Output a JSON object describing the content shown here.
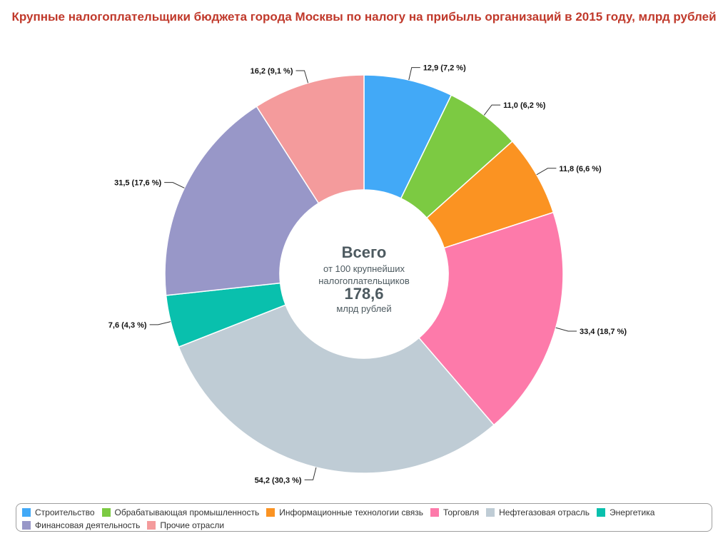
{
  "title": "Крупные налогоплательщики бюджета города Москвы по налогу на прибыль организаций в 2015 году, млрд рублей",
  "center": {
    "heading": "Всего",
    "line1": "от 100 крупнейших",
    "line2": "налогоплательщиков",
    "total": "178,6",
    "unit": "млрд рублей"
  },
  "chart_data": {
    "type": "pie",
    "donut": true,
    "total": 178.6,
    "slices": [
      {
        "label": "Строительство",
        "value": 12.9,
        "percent": 7.2,
        "data_label": "12,9 (7,2 %)",
        "color": "#42a9f7"
      },
      {
        "label": "Обрабатывающая промышленность",
        "value": 11.0,
        "percent": 6.2,
        "data_label": "11,0 (6,2 %)",
        "color": "#7cca42"
      },
      {
        "label": "Информационные технологии связь",
        "value": 11.8,
        "percent": 6.6,
        "data_label": "11,8 (6,6 %)",
        "color": "#fb9322"
      },
      {
        "label": "Торговля",
        "value": 33.4,
        "percent": 18.7,
        "data_label": "33,4 (18,7 %)",
        "color": "#fd7aaa"
      },
      {
        "label": "Нефтегазовая отрасль",
        "value": 54.2,
        "percent": 30.3,
        "data_label": "54,2 (30,3 %)",
        "color": "#bfccd5"
      },
      {
        "label": "Энергетика",
        "value": 7.6,
        "percent": 4.3,
        "data_label": "7,6 (4,3 %)",
        "color": "#09c0ad"
      },
      {
        "label": "Финансовая деятельность",
        "value": 31.5,
        "percent": 17.6,
        "data_label": "31,5 (17,6 %)",
        "color": "#9897c8"
      },
      {
        "label": "Прочие отрасли",
        "value": 16.2,
        "percent": 9.1,
        "data_label": "16,2 (9,1 %)",
        "color": "#f49b9c"
      }
    ],
    "legend_position": "bottom"
  }
}
